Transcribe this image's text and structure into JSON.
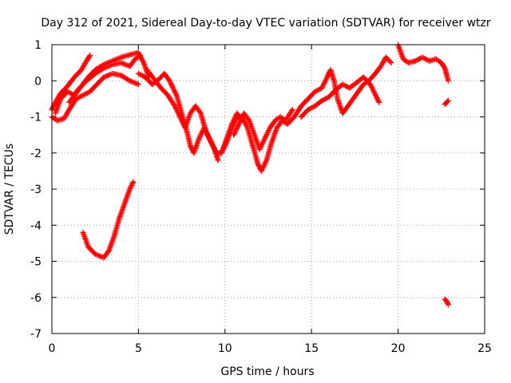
{
  "chart_data": {
    "type": "scatter",
    "title": "Day 312 of 2021, Sidereal Day-to-day VTEC variation (SDTVAR) for receiver wtzr",
    "xlabel": "GPS time / hours",
    "ylabel": "SDTVAR / TECUs",
    "xlim": [
      0,
      25
    ],
    "ylim": [
      -7,
      1
    ],
    "xticks": [
      0,
      5,
      10,
      15,
      20,
      25
    ],
    "yticks": [
      -7,
      -6,
      -5,
      -4,
      -3,
      -2,
      -1,
      0,
      1
    ],
    "grid": true,
    "marker": "+",
    "color": "#ff0000",
    "series": [
      {
        "name": "arc-1",
        "points": [
          [
            0.0,
            -0.8
          ],
          [
            0.2,
            -0.6
          ],
          [
            0.5,
            -0.35
          ],
          [
            0.9,
            -0.15
          ],
          [
            1.3,
            0.1
          ],
          [
            1.7,
            0.3
          ],
          [
            2.0,
            0.55
          ],
          [
            2.2,
            0.7
          ]
        ]
      },
      {
        "name": "arc-2",
        "points": [
          [
            0.0,
            -1.0
          ],
          [
            0.3,
            -1.1
          ],
          [
            0.7,
            -1.05
          ],
          [
            1.0,
            -0.8
          ],
          [
            1.4,
            -0.5
          ],
          [
            1.8,
            -0.4
          ],
          [
            2.2,
            -0.3
          ],
          [
            2.6,
            -0.1
          ],
          [
            3.0,
            0.1
          ],
          [
            3.5,
            0.2
          ],
          [
            4.0,
            0.15
          ],
          [
            4.5,
            0.0
          ],
          [
            5.0,
            -0.1
          ]
        ]
      },
      {
        "name": "arc-3",
        "points": [
          [
            0.2,
            -0.9
          ],
          [
            0.5,
            -0.5
          ],
          [
            0.9,
            -0.3
          ],
          [
            1.3,
            -0.4
          ],
          [
            1.7,
            -0.15
          ],
          [
            2.1,
            0.1
          ],
          [
            2.5,
            0.3
          ],
          [
            3.0,
            0.45
          ],
          [
            3.5,
            0.55
          ],
          [
            4.0,
            0.65
          ],
          [
            4.5,
            0.72
          ],
          [
            5.0,
            0.78
          ],
          [
            5.3,
            0.5
          ],
          [
            5.6,
            0.1
          ]
        ]
      },
      {
        "name": "arc-4",
        "points": [
          [
            1.0,
            -0.6
          ],
          [
            1.5,
            -0.25
          ],
          [
            2.0,
            0.0
          ],
          [
            2.5,
            0.2
          ],
          [
            3.0,
            0.35
          ],
          [
            3.5,
            0.45
          ],
          [
            4.0,
            0.5
          ],
          [
            4.5,
            0.4
          ],
          [
            4.8,
            0.6
          ],
          [
            5.1,
            0.7
          ]
        ]
      },
      {
        "name": "arc-5",
        "points": [
          [
            5.0,
            0.2
          ],
          [
            5.4,
            0.1
          ],
          [
            5.8,
            -0.1
          ],
          [
            6.2,
            0.05
          ],
          [
            6.5,
            0.2
          ],
          [
            6.8,
            0.0
          ],
          [
            7.2,
            -0.4
          ],
          [
            7.5,
            -0.9
          ],
          [
            7.8,
            -1.4
          ],
          [
            8.0,
            -1.8
          ],
          [
            8.2,
            -2.0
          ],
          [
            8.5,
            -1.6
          ],
          [
            8.8,
            -1.3
          ],
          [
            9.1,
            -1.6
          ],
          [
            9.4,
            -1.9
          ],
          [
            9.6,
            -2.2
          ]
        ]
      },
      {
        "name": "arc-6",
        "points": [
          [
            5.5,
            0.3
          ],
          [
            5.9,
            0.05
          ],
          [
            6.3,
            -0.2
          ],
          [
            6.7,
            -0.4
          ],
          [
            7.1,
            -0.7
          ],
          [
            7.4,
            -1.0
          ],
          [
            7.7,
            -1.3
          ],
          [
            8.0,
            -0.9
          ],
          [
            8.3,
            -0.7
          ],
          [
            8.6,
            -0.9
          ],
          [
            8.9,
            -1.4
          ],
          [
            9.2,
            -1.7
          ],
          [
            9.5,
            -2.0
          ],
          [
            9.8,
            -2.0
          ],
          [
            10.1,
            -1.6
          ],
          [
            10.4,
            -1.2
          ],
          [
            10.7,
            -0.9
          ],
          [
            11.0,
            -1.1
          ]
        ]
      },
      {
        "name": "arc-7",
        "points": [
          [
            9.8,
            -2.0
          ],
          [
            10.1,
            -1.7
          ],
          [
            10.4,
            -1.3
          ],
          [
            10.7,
            -1.0
          ],
          [
            11.0,
            -1.0
          ],
          [
            11.3,
            -1.3
          ],
          [
            11.6,
            -1.8
          ],
          [
            11.9,
            -2.3
          ],
          [
            12.1,
            -2.5
          ],
          [
            12.4,
            -2.2
          ],
          [
            12.7,
            -1.7
          ],
          [
            13.0,
            -1.3
          ],
          [
            13.3,
            -1.1
          ],
          [
            13.6,
            -1.2
          ],
          [
            14.0,
            -1.0
          ]
        ]
      },
      {
        "name": "arc-8",
        "points": [
          [
            10.5,
            -1.5
          ],
          [
            10.8,
            -1.2
          ],
          [
            11.1,
            -0.9
          ],
          [
            11.4,
            -1.1
          ],
          [
            11.7,
            -1.5
          ],
          [
            12.0,
            -1.9
          ],
          [
            12.3,
            -1.6
          ],
          [
            12.6,
            -1.3
          ],
          [
            12.9,
            -1.1
          ],
          [
            13.2,
            -1.0
          ],
          [
            13.5,
            -1.1
          ],
          [
            13.9,
            -0.8
          ]
        ]
      },
      {
        "name": "arc-9",
        "points": [
          [
            14.0,
            -1.0
          ],
          [
            14.4,
            -0.7
          ],
          [
            14.8,
            -0.5
          ],
          [
            15.2,
            -0.3
          ],
          [
            15.6,
            -0.2
          ],
          [
            15.9,
            0.1
          ],
          [
            16.1,
            0.3
          ],
          [
            16.3,
            0.0
          ],
          [
            16.5,
            -0.5
          ],
          [
            16.8,
            -0.9
          ],
          [
            17.1,
            -0.7
          ],
          [
            17.4,
            -0.5
          ],
          [
            17.7,
            -0.3
          ],
          [
            18.0,
            -0.1
          ],
          [
            18.3,
            0.0
          ],
          [
            18.6,
            0.15
          ],
          [
            19.0,
            0.4
          ],
          [
            19.3,
            0.65
          ],
          [
            19.6,
            0.5
          ]
        ]
      },
      {
        "name": "arc-10",
        "points": [
          [
            14.4,
            -1.0
          ],
          [
            14.8,
            -0.8
          ],
          [
            15.2,
            -0.7
          ],
          [
            15.6,
            -0.55
          ],
          [
            16.0,
            -0.45
          ],
          [
            16.4,
            -0.25
          ],
          [
            16.8,
            -0.1
          ],
          [
            17.2,
            -0.2
          ],
          [
            17.6,
            -0.05
          ],
          [
            18.0,
            0.1
          ],
          [
            18.4,
            -0.1
          ],
          [
            18.7,
            -0.4
          ],
          [
            18.9,
            -0.6
          ]
        ]
      },
      {
        "name": "arc-11",
        "points": [
          [
            20.0,
            1.0
          ],
          [
            20.3,
            0.6
          ],
          [
            20.6,
            0.5
          ],
          [
            21.0,
            0.55
          ],
          [
            21.4,
            0.65
          ],
          [
            21.8,
            0.55
          ],
          [
            22.2,
            0.6
          ],
          [
            22.5,
            0.5
          ],
          [
            22.7,
            0.35
          ],
          [
            22.9,
            0.0
          ]
        ]
      },
      {
        "name": "arc-12",
        "points": [
          [
            1.8,
            -4.2
          ],
          [
            2.1,
            -4.6
          ],
          [
            2.5,
            -4.8
          ],
          [
            3.0,
            -4.9
          ],
          [
            3.3,
            -4.7
          ],
          [
            3.6,
            -4.3
          ],
          [
            3.9,
            -3.8
          ],
          [
            4.2,
            -3.4
          ],
          [
            4.5,
            -3.0
          ],
          [
            4.7,
            -2.8
          ]
        ]
      },
      {
        "name": "arc-13",
        "points": [
          [
            22.7,
            -0.65
          ],
          [
            22.8,
            -0.6
          ],
          [
            22.9,
            -0.55
          ]
        ]
      },
      {
        "name": "arc-14",
        "points": [
          [
            22.7,
            -6.05
          ],
          [
            22.8,
            -6.1
          ],
          [
            22.9,
            -6.2
          ]
        ]
      }
    ]
  }
}
